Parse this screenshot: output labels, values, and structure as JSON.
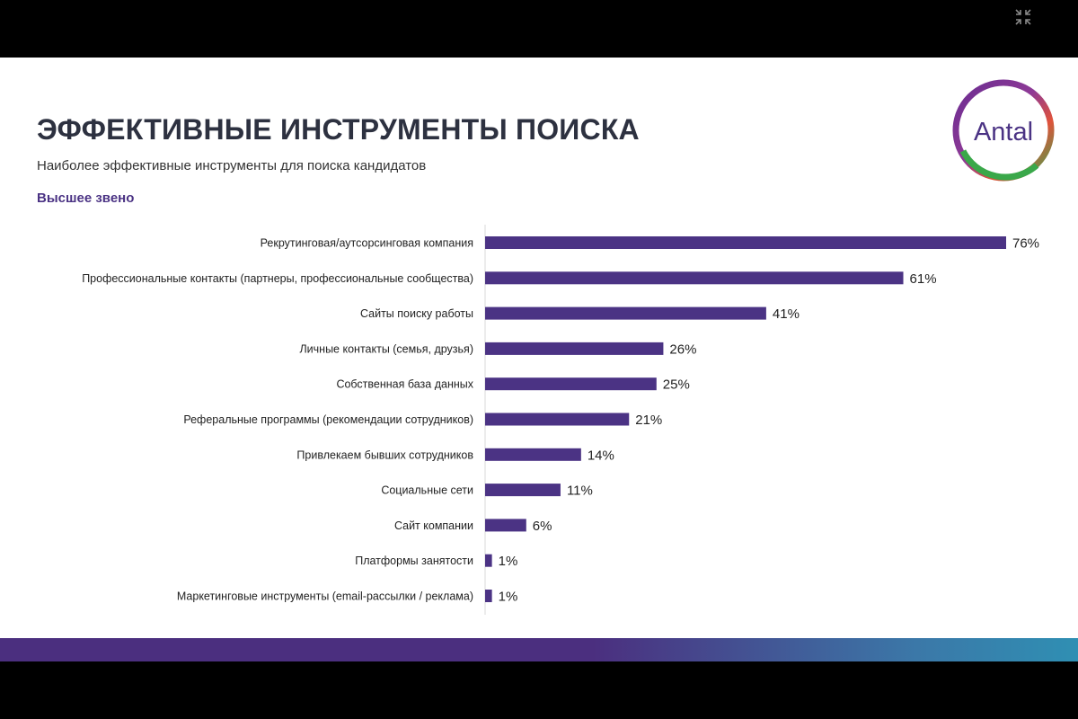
{
  "slide": {
    "title": "ЭФФЕКТИВНЫЕ ИНСТРУМЕНТЫ ПОИСКА",
    "subtitle": "Наиболее эффективные инструменты для поиска кандидатов",
    "section_label": "Высшее звено",
    "logo_text": "Antal"
  },
  "colors": {
    "bar": "#4b3384",
    "title": "#2d3140",
    "accent": "#4b3384"
  },
  "chart_data": {
    "type": "bar",
    "orientation": "horizontal",
    "title": "Высшее звено",
    "categories": [
      "Рекрутинговая/аутсорсинговая компания",
      "Профессиональные контакты (партнеры, профессиональные сообщества)",
      "Сайты поиску работы",
      "Личные контакты (семья, друзья)",
      "Собственная база данных",
      "Реферальные программы (рекомендации сотрудников)",
      "Привлекаем бывших сотрудников",
      "Социальные сети",
      "Сайт компании",
      "Платформы занятости",
      "Маркетинговые инструменты (email-рассылки / реклама)"
    ],
    "values": [
      76,
      61,
      41,
      26,
      25,
      21,
      14,
      11,
      6,
      1,
      1
    ],
    "unit": "%",
    "xlim": [
      0,
      76
    ],
    "grid": false
  }
}
